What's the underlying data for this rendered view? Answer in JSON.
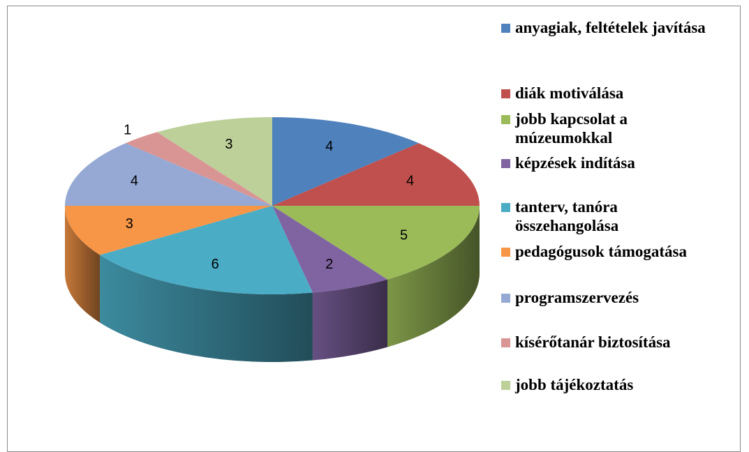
{
  "chart_data": {
    "type": "pie",
    "three_d": true,
    "categories": [
      "anyagiak, feltételek javítása",
      "diák motiválása",
      "jobb kapcsolat a múzeumokkal",
      "képzések indítása",
      "tanterv, tanóra összehangolása",
      "pedagógusok támogatása",
      "programszervezés",
      "kísérőtanár biztosítása",
      "jobb tájékoztatás"
    ],
    "values": [
      4,
      4,
      5,
      2,
      6,
      3,
      4,
      1,
      3
    ],
    "colors": [
      "#4F81BD",
      "#C0504D",
      "#9BBB59",
      "#8064A2",
      "#4BACC6",
      "#F79646",
      "#95A9D4",
      "#D99594",
      "#BDD09A"
    ],
    "legend": "right"
  }
}
